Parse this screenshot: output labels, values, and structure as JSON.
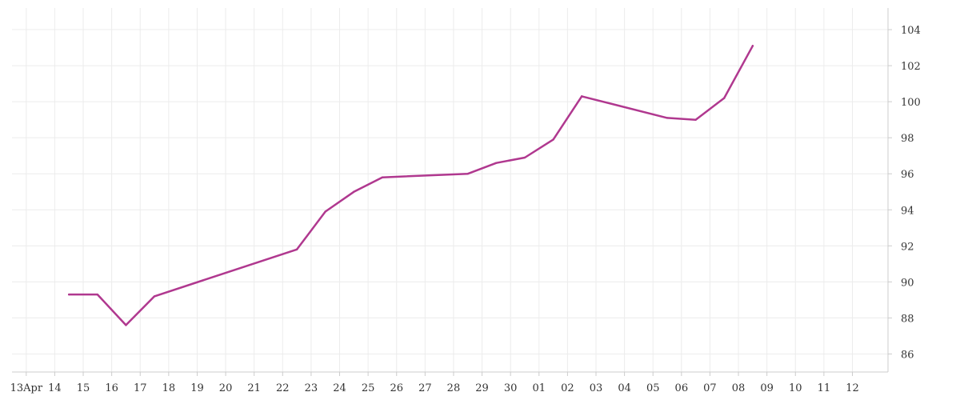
{
  "chart_data": {
    "type": "line",
    "title": "",
    "xlabel": "",
    "ylabel": "",
    "x_ticks": [
      {
        "date": "2024-04-13",
        "label": "13Apr"
      },
      {
        "date": "2024-04-14",
        "label": "14"
      },
      {
        "date": "2024-04-15",
        "label": "15"
      },
      {
        "date": "2024-04-16",
        "label": "16"
      },
      {
        "date": "2024-04-17",
        "label": "17"
      },
      {
        "date": "2024-04-18",
        "label": "18"
      },
      {
        "date": "2024-04-19",
        "label": "19"
      },
      {
        "date": "2024-04-20",
        "label": "20"
      },
      {
        "date": "2024-04-21",
        "label": "21"
      },
      {
        "date": "2024-04-22",
        "label": "22"
      },
      {
        "date": "2024-04-23",
        "label": "23"
      },
      {
        "date": "2024-04-24",
        "label": "24"
      },
      {
        "date": "2024-04-25",
        "label": "25"
      },
      {
        "date": "2024-04-26",
        "label": "26"
      },
      {
        "date": "2024-04-27",
        "label": "27"
      },
      {
        "date": "2024-04-28",
        "label": "28"
      },
      {
        "date": "2024-04-29",
        "label": "29"
      },
      {
        "date": "2024-04-30",
        "label": "30"
      },
      {
        "date": "2024-05-01",
        "label": "01"
      },
      {
        "date": "2024-05-02",
        "label": "02"
      },
      {
        "date": "2024-05-03",
        "label": "03"
      },
      {
        "date": "2024-05-04",
        "label": "04"
      },
      {
        "date": "2024-05-05",
        "label": "05"
      },
      {
        "date": "2024-05-06",
        "label": "06"
      },
      {
        "date": "2024-05-07",
        "label": "07"
      },
      {
        "date": "2024-05-08",
        "label": "08"
      },
      {
        "date": "2024-05-09",
        "label": "09"
      },
      {
        "date": "2024-05-10",
        "label": "10"
      },
      {
        "date": "2024-05-11",
        "label": "11"
      },
      {
        "date": "2024-05-12",
        "label": "12"
      }
    ],
    "y_ticks": [
      86,
      88,
      90,
      92,
      94,
      96,
      98,
      100,
      102,
      104
    ],
    "xlim": [
      "2024-04-12T12:00",
      "2024-05-13T06:00"
    ],
    "ylim": [
      85.0,
      105.2
    ],
    "grid": true,
    "y_axis_side": "right",
    "series": [
      {
        "color": "#b0388f",
        "points": [
          {
            "x": "2024-04-14T12:00",
            "y": 89.3
          },
          {
            "x": "2024-04-15T12:00",
            "y": 89.3
          },
          {
            "x": "2024-04-16T12:00",
            "y": 87.6
          },
          {
            "x": "2024-04-17T12:00",
            "y": 89.2
          },
          {
            "x": "2024-04-22T12:00",
            "y": 91.8
          },
          {
            "x": "2024-04-23T12:00",
            "y": 93.9
          },
          {
            "x": "2024-04-24T12:00",
            "y": 95.0
          },
          {
            "x": "2024-04-25T12:00",
            "y": 95.8
          },
          {
            "x": "2024-04-28T12:00",
            "y": 96.0
          },
          {
            "x": "2024-04-29T12:00",
            "y": 96.6
          },
          {
            "x": "2024-04-30T12:00",
            "y": 96.9
          },
          {
            "x": "2024-05-01T12:00",
            "y": 97.9
          },
          {
            "x": "2024-05-02T12:00",
            "y": 100.3
          },
          {
            "x": "2024-05-05T12:00",
            "y": 99.1
          },
          {
            "x": "2024-05-06T12:00",
            "y": 99.0
          },
          {
            "x": "2024-05-07T12:00",
            "y": 100.2
          },
          {
            "x": "2024-05-08T12:00",
            "y": 103.1
          }
        ]
      }
    ]
  }
}
